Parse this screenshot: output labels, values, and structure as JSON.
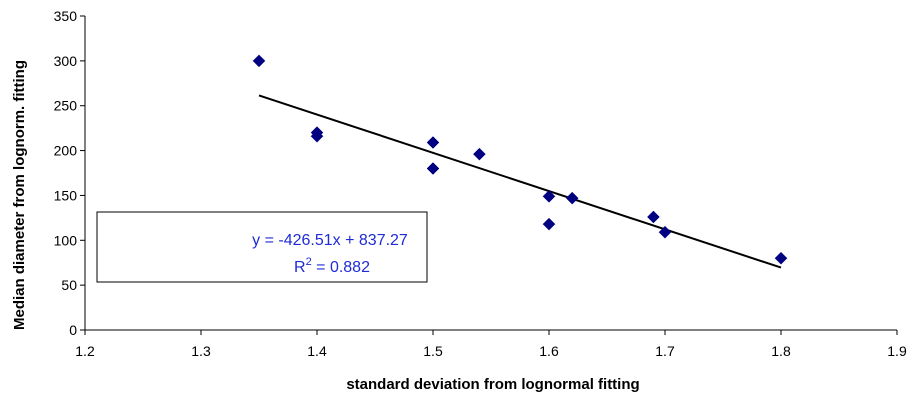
{
  "chart_data": {
    "type": "scatter",
    "xlabel": "standard deviation from lognormal fitting",
    "ylabel": "Median diameter from lognorm. fitting",
    "xlim": [
      1.2,
      1.9
    ],
    "ylim": [
      0,
      350
    ],
    "x_ticks": [
      "1.2",
      "1.3",
      "1.4",
      "1.5",
      "1.6",
      "1.7",
      "1.8",
      "1.9"
    ],
    "y_ticks": [
      "0",
      "50",
      "100",
      "150",
      "200",
      "250",
      "300",
      "350"
    ],
    "grid": false,
    "legend": "none",
    "series": [
      {
        "marker": "diamond",
        "color": "#000080",
        "points": [
          {
            "x": 1.35,
            "y": 300
          },
          {
            "x": 1.4,
            "y": 220
          },
          {
            "x": 1.4,
            "y": 216
          },
          {
            "x": 1.5,
            "y": 209
          },
          {
            "x": 1.5,
            "y": 180
          },
          {
            "x": 1.54,
            "y": 196
          },
          {
            "x": 1.6,
            "y": 149
          },
          {
            "x": 1.6,
            "y": 118
          },
          {
            "x": 1.62,
            "y": 147
          },
          {
            "x": 1.69,
            "y": 126
          },
          {
            "x": 1.7,
            "y": 109
          },
          {
            "x": 1.8,
            "y": 80
          }
        ]
      }
    ],
    "trendline": {
      "type": "linear",
      "slope": -426.51,
      "intercept": 837.27,
      "x_range": [
        1.35,
        1.8
      ],
      "color": "#000000"
    },
    "annotation": {
      "equation": "y = -426.51x + 837.27",
      "r2_prefix": "R",
      "r2_sup": "2",
      "r2_suffix": " = 0.882",
      "color": "#1f2bd6"
    }
  }
}
